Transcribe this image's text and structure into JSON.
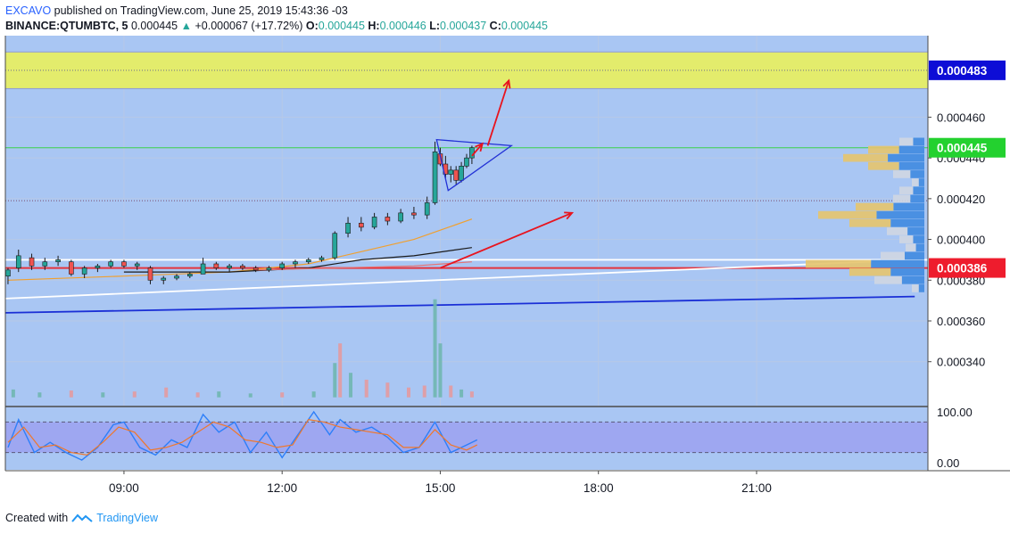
{
  "header": {
    "publisher": "EXCAVO",
    "published_text": "published on TradingView.com, June 25, 2019 15:43:36 -03",
    "symbol": "BINANCE:QTUMBTC, 5",
    "last_price": "0.000445",
    "change": "+0.000067 (+17.72%)",
    "o_label": "O:",
    "o_value": "0.000445",
    "h_label": "H:",
    "h_value": "0.000446",
    "l_label": "L:",
    "l_value": "0.000437",
    "c_label": "C:",
    "c_value": "0.000445"
  },
  "footer": {
    "created_with": "Created with",
    "brand": "TradingView"
  },
  "colors": {
    "pane_bg": "#a9c6f3",
    "zone_fill": "#e3ec6c",
    "up_candle": "#26a69a",
    "down_candle": "#ef5350",
    "stoch_band": "#9b9ff0",
    "badge_blue": "#0d0dd6",
    "badge_green": "#23d12f",
    "badge_red": "#ee1c2d",
    "arrow_red": "#e8141e"
  },
  "chart_data": {
    "type": "candlestick",
    "x_ticks": [
      "09:00",
      "12:00",
      "15:00",
      "18:00",
      "21:00"
    ],
    "y_ticks": [
      "0.000460",
      "0.000440",
      "0.000420",
      "0.000400",
      "0.000380",
      "0.000360",
      "0.000340"
    ],
    "y_range": [
      0.000318,
      0.0005
    ],
    "price_badges": [
      {
        "label": "0.000483",
        "value": 0.000483,
        "color": "#0d0dd6"
      },
      {
        "label": "0.000445",
        "value": 0.000445,
        "color": "#23d12f"
      },
      {
        "label": "0.000386",
        "value": 0.000386,
        "color": "#ee1c2d"
      }
    ],
    "resistance_zone": [
      0.000474,
      0.000492
    ],
    "horizontal_lines": [
      0.000483,
      0.000445,
      0.000419,
      0.00039,
      0.000386
    ],
    "hours_start": 6.75,
    "hours_end": 24.25,
    "candles": [
      {
        "t": 6.8,
        "o": 0.000382,
        "h": 0.000386,
        "l": 0.000378,
        "c": 0.000385
      },
      {
        "t": 7.0,
        "o": 0.000386,
        "h": 0.000395,
        "l": 0.000384,
        "c": 0.000392
      },
      {
        "t": 7.25,
        "o": 0.000391,
        "h": 0.000393,
        "l": 0.000385,
        "c": 0.000387
      },
      {
        "t": 7.5,
        "o": 0.000387,
        "h": 0.000391,
        "l": 0.000385,
        "c": 0.000389
      },
      {
        "t": 7.75,
        "o": 0.000389,
        "h": 0.000392,
        "l": 0.000387,
        "c": 0.00039
      },
      {
        "t": 8.0,
        "o": 0.000389,
        "h": 0.00039,
        "l": 0.000382,
        "c": 0.000383
      },
      {
        "t": 8.25,
        "o": 0.000383,
        "h": 0.000387,
        "l": 0.000381,
        "c": 0.000386
      },
      {
        "t": 8.5,
        "o": 0.000386,
        "h": 0.000388,
        "l": 0.000384,
        "c": 0.000387
      },
      {
        "t": 8.75,
        "o": 0.000387,
        "h": 0.00039,
        "l": 0.000386,
        "c": 0.000389
      },
      {
        "t": 9.0,
        "o": 0.000389,
        "h": 0.00039,
        "l": 0.000386,
        "c": 0.000387
      },
      {
        "t": 9.25,
        "o": 0.000387,
        "h": 0.000389,
        "l": 0.000385,
        "c": 0.000388
      },
      {
        "t": 9.5,
        "o": 0.000386,
        "h": 0.000387,
        "l": 0.000378,
        "c": 0.00038
      },
      {
        "t": 9.75,
        "o": 0.00038,
        "h": 0.000382,
        "l": 0.000378,
        "c": 0.000381
      },
      {
        "t": 10.0,
        "o": 0.000381,
        "h": 0.000383,
        "l": 0.00038,
        "c": 0.000382
      },
      {
        "t": 10.25,
        "o": 0.000382,
        "h": 0.000384,
        "l": 0.000381,
        "c": 0.000383
      },
      {
        "t": 10.5,
        "o": 0.000383,
        "h": 0.000391,
        "l": 0.000383,
        "c": 0.000388
      },
      {
        "t": 10.75,
        "o": 0.000388,
        "h": 0.000389,
        "l": 0.000385,
        "c": 0.000386
      },
      {
        "t": 11.0,
        "o": 0.000386,
        "h": 0.000388,
        "l": 0.000384,
        "c": 0.000387
      },
      {
        "t": 11.25,
        "o": 0.000387,
        "h": 0.000388,
        "l": 0.000385,
        "c": 0.000386
      },
      {
        "t": 11.5,
        "o": 0.000386,
        "h": 0.000387,
        "l": 0.000384,
        "c": 0.000385
      },
      {
        "t": 11.75,
        "o": 0.000385,
        "h": 0.000387,
        "l": 0.000384,
        "c": 0.000386
      },
      {
        "t": 12.0,
        "o": 0.000386,
        "h": 0.000389,
        "l": 0.000385,
        "c": 0.000388
      },
      {
        "t": 12.25,
        "o": 0.000388,
        "h": 0.00039,
        "l": 0.000386,
        "c": 0.000389
      },
      {
        "t": 12.5,
        "o": 0.000389,
        "h": 0.000391,
        "l": 0.000388,
        "c": 0.00039
      },
      {
        "t": 12.75,
        "o": 0.00039,
        "h": 0.000392,
        "l": 0.000389,
        "c": 0.000391
      },
      {
        "t": 13.0,
        "o": 0.000391,
        "h": 0.000404,
        "l": 0.00039,
        "c": 0.000403
      },
      {
        "t": 13.25,
        "o": 0.000403,
        "h": 0.000411,
        "l": 0.000401,
        "c": 0.000408
      },
      {
        "t": 13.5,
        "o": 0.000408,
        "h": 0.000411,
        "l": 0.000404,
        "c": 0.000406
      },
      {
        "t": 13.75,
        "o": 0.000406,
        "h": 0.000413,
        "l": 0.000405,
        "c": 0.000411
      },
      {
        "t": 14.0,
        "o": 0.000411,
        "h": 0.000413,
        "l": 0.000407,
        "c": 0.000409
      },
      {
        "t": 14.25,
        "o": 0.000409,
        "h": 0.000415,
        "l": 0.000408,
        "c": 0.000413
      },
      {
        "t": 14.5,
        "o": 0.000413,
        "h": 0.000416,
        "l": 0.00041,
        "c": 0.000412
      },
      {
        "t": 14.75,
        "o": 0.000412,
        "h": 0.000421,
        "l": 0.00041,
        "c": 0.000418
      },
      {
        "t": 14.9,
        "o": 0.000418,
        "h": 0.000448,
        "l": 0.000417,
        "c": 0.000443
      },
      {
        "t": 15.0,
        "o": 0.000442,
        "h": 0.000445,
        "l": 0.000436,
        "c": 0.000437
      },
      {
        "t": 15.1,
        "o": 0.000437,
        "h": 0.000441,
        "l": 0.00043,
        "c": 0.000432
      },
      {
        "t": 15.2,
        "o": 0.000432,
        "h": 0.000436,
        "l": 0.000428,
        "c": 0.000434
      },
      {
        "t": 15.3,
        "o": 0.000434,
        "h": 0.000436,
        "l": 0.000427,
        "c": 0.000429
      },
      {
        "t": 15.4,
        "o": 0.000429,
        "h": 0.000438,
        "l": 0.000428,
        "c": 0.000436
      },
      {
        "t": 15.5,
        "o": 0.000436,
        "h": 0.000442,
        "l": 0.000435,
        "c": 0.00044
      },
      {
        "t": 15.6,
        "o": 0.00044,
        "h": 0.000446,
        "l": 0.000437,
        "c": 0.000445
      }
    ],
    "moving_averages": [
      {
        "color": "#f0a030",
        "points": [
          [
            6.8,
            0.00038
          ],
          [
            9.0,
            0.000382
          ],
          [
            11.0,
            0.000384
          ],
          [
            12.5,
            0.000388
          ],
          [
            13.5,
            0.000394
          ],
          [
            14.5,
            0.0004
          ],
          [
            15.6,
            0.00041
          ]
        ]
      },
      {
        "color": "#1a1a1a",
        "points": [
          [
            9.0,
            0.000384
          ],
          [
            11.0,
            0.000384
          ],
          [
            12.5,
            0.000386
          ],
          [
            13.5,
            0.00039
          ],
          [
            14.5,
            0.000392
          ],
          [
            15.6,
            0.000396
          ]
        ]
      },
      {
        "color": "#e57373",
        "points": [
          [
            11.5,
            0.000385
          ],
          [
            13.0,
            0.000386
          ],
          [
            14.5,
            0.000387
          ],
          [
            15.6,
            0.000389
          ]
        ]
      }
    ],
    "trendlines": [
      {
        "color": "#ffffff",
        "points": [
          [
            6.75,
            0.000371
          ],
          [
            24.0,
            0.00039
          ]
        ]
      },
      {
        "color": "#1a2fd6",
        "points": [
          [
            6.75,
            0.000364
          ],
          [
            24.0,
            0.000372
          ]
        ]
      }
    ],
    "arrows": [
      {
        "from": [
          15.0,
          0.000386
        ],
        "to": [
          17.5,
          0.000413
        ]
      },
      {
        "from": [
          15.9,
          0.000446
        ],
        "to": [
          16.3,
          0.000478
        ]
      },
      {
        "from": [
          15.6,
          0.000441
        ],
        "to": [
          15.8,
          0.000447
        ]
      }
    ],
    "triangle": [
      [
        14.93,
        0.000449
      ],
      [
        16.35,
        0.000446
      ],
      [
        15.15,
        0.000424
      ]
    ],
    "volume_profile": [
      {
        "price": 0.000448,
        "value": 0.2
      },
      {
        "price": 0.000444,
        "value": 0.45
      },
      {
        "price": 0.00044,
        "value": 0.65
      },
      {
        "price": 0.000436,
        "value": 0.45
      },
      {
        "price": 0.000432,
        "value": 0.25
      },
      {
        "price": 0.000428,
        "value": 0.1
      },
      {
        "price": 0.000424,
        "value": 0.2
      },
      {
        "price": 0.00042,
        "value": 0.25
      },
      {
        "price": 0.000416,
        "value": 0.55
      },
      {
        "price": 0.000412,
        "value": 0.85
      },
      {
        "price": 0.000408,
        "value": 0.6
      },
      {
        "price": 0.000404,
        "value": 0.3
      },
      {
        "price": 0.0004,
        "value": 0.2
      },
      {
        "price": 0.000396,
        "value": 0.15
      },
      {
        "price": 0.000392,
        "value": 0.35
      },
      {
        "price": 0.000388,
        "value": 0.95
      },
      {
        "price": 0.000384,
        "value": 0.6
      },
      {
        "price": 0.00038,
        "value": 0.4
      },
      {
        "price": 0.000376,
        "value": 0.1
      }
    ],
    "volume": [
      {
        "t": 6.9,
        "v": 0.08
      },
      {
        "t": 7.4,
        "v": 0.05
      },
      {
        "t": 8.0,
        "v": 0.07
      },
      {
        "t": 8.6,
        "v": 0.05
      },
      {
        "t": 9.2,
        "v": 0.06
      },
      {
        "t": 9.8,
        "v": 0.1
      },
      {
        "t": 10.4,
        "v": 0.05
      },
      {
        "t": 10.8,
        "v": 0.06
      },
      {
        "t": 11.4,
        "v": 0.04
      },
      {
        "t": 12.0,
        "v": 0.05
      },
      {
        "t": 12.6,
        "v": 0.06
      },
      {
        "t": 13.0,
        "v": 0.35
      },
      {
        "t": 13.1,
        "v": 0.55
      },
      {
        "t": 13.3,
        "v": 0.25
      },
      {
        "t": 13.6,
        "v": 0.18
      },
      {
        "t": 14.0,
        "v": 0.15
      },
      {
        "t": 14.4,
        "v": 0.1
      },
      {
        "t": 14.7,
        "v": 0.12
      },
      {
        "t": 14.9,
        "v": 1.0
      },
      {
        "t": 15.0,
        "v": 0.55
      },
      {
        "t": 15.2,
        "v": 0.12
      },
      {
        "t": 15.4,
        "v": 0.08
      },
      {
        "t": 15.6,
        "v": 0.06
      }
    ],
    "stochastic": {
      "y_ticks": [
        "100.00",
        "0.00"
      ],
      "band": [
        20,
        80
      ],
      "k": [
        [
          6.8,
          30
        ],
        [
          7.0,
          85
        ],
        [
          7.3,
          20
        ],
        [
          7.6,
          40
        ],
        [
          7.9,
          20
        ],
        [
          8.2,
          5
        ],
        [
          8.5,
          30
        ],
        [
          8.8,
          75
        ],
        [
          9.0,
          80
        ],
        [
          9.3,
          30
        ],
        [
          9.6,
          15
        ],
        [
          9.9,
          45
        ],
        [
          10.2,
          30
        ],
        [
          10.5,
          95
        ],
        [
          10.8,
          60
        ],
        [
          11.1,
          80
        ],
        [
          11.4,
          20
        ],
        [
          11.7,
          60
        ],
        [
          12.0,
          10
        ],
        [
          12.3,
          55
        ],
        [
          12.6,
          100
        ],
        [
          12.9,
          55
        ],
        [
          13.1,
          85
        ],
        [
          13.4,
          60
        ],
        [
          13.7,
          70
        ],
        [
          14.0,
          50
        ],
        [
          14.3,
          20
        ],
        [
          14.6,
          30
        ],
        [
          14.9,
          80
        ],
        [
          15.2,
          20
        ],
        [
          15.5,
          35
        ],
        [
          15.7,
          45
        ]
      ],
      "d": [
        [
          6.8,
          40
        ],
        [
          7.1,
          70
        ],
        [
          7.4,
          30
        ],
        [
          7.7,
          35
        ],
        [
          8.0,
          20
        ],
        [
          8.3,
          15
        ],
        [
          8.6,
          40
        ],
        [
          8.9,
          70
        ],
        [
          9.2,
          60
        ],
        [
          9.5,
          25
        ],
        [
          9.8,
          30
        ],
        [
          10.1,
          40
        ],
        [
          10.4,
          60
        ],
        [
          10.7,
          80
        ],
        [
          11.0,
          70
        ],
        [
          11.3,
          45
        ],
        [
          11.6,
          40
        ],
        [
          11.9,
          30
        ],
        [
          12.2,
          35
        ],
        [
          12.5,
          85
        ],
        [
          12.8,
          80
        ],
        [
          13.1,
          70
        ],
        [
          13.4,
          65
        ],
        [
          13.7,
          60
        ],
        [
          14.0,
          55
        ],
        [
          14.3,
          30
        ],
        [
          14.6,
          30
        ],
        [
          14.9,
          65
        ],
        [
          15.2,
          35
        ],
        [
          15.5,
          25
        ],
        [
          15.7,
          35
        ]
      ]
    }
  }
}
